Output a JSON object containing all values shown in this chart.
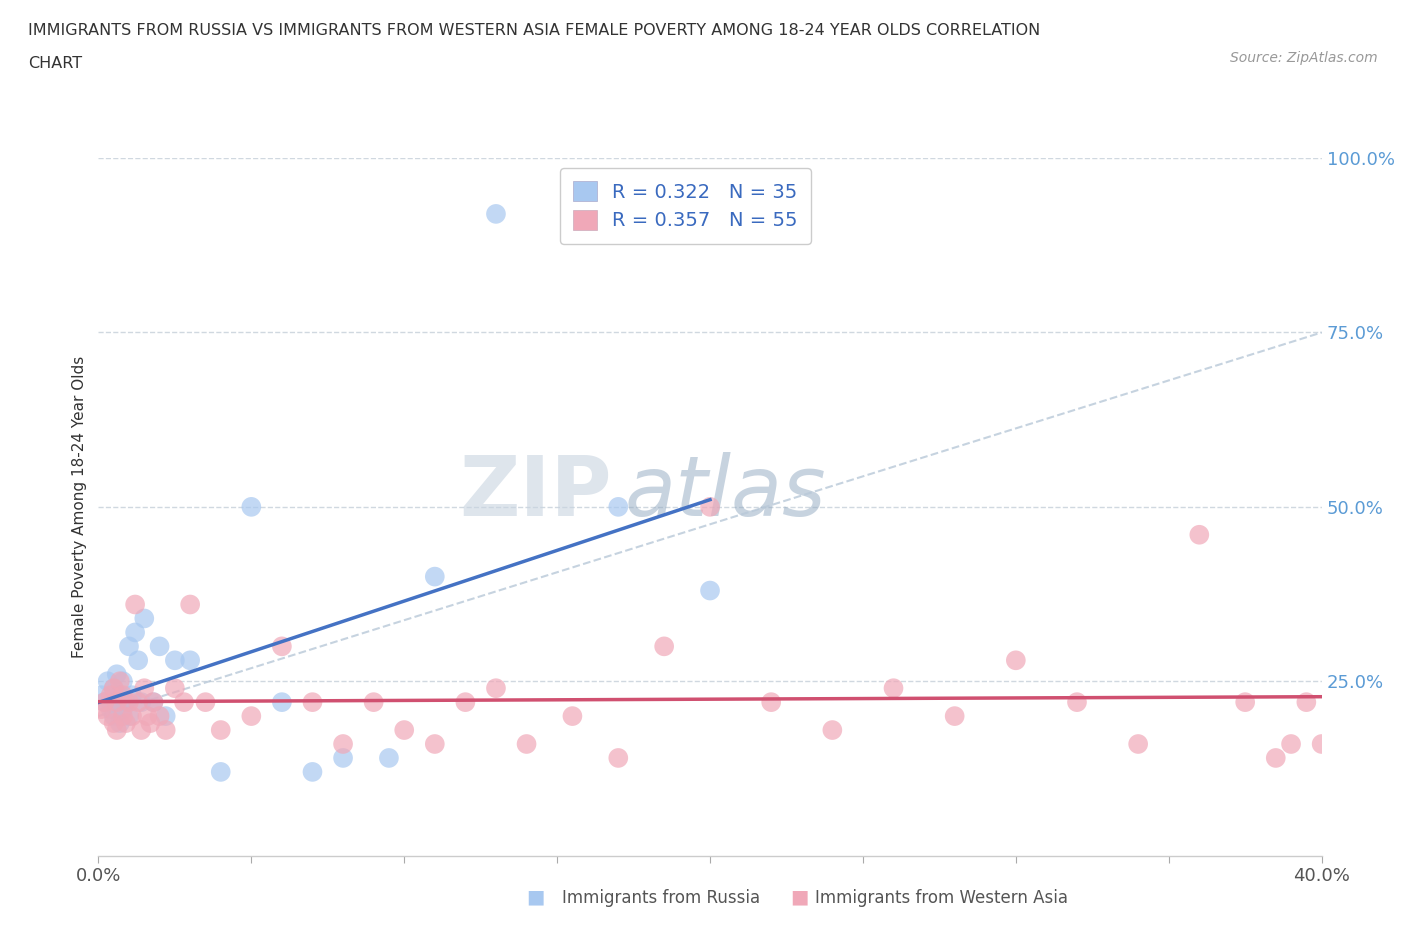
{
  "title_line1": "IMMIGRANTS FROM RUSSIA VS IMMIGRANTS FROM WESTERN ASIA FEMALE POVERTY AMONG 18-24 YEAR OLDS CORRELATION",
  "title_line2": "CHART",
  "source": "Source: ZipAtlas.com",
  "ylabel": "Female Poverty Among 18-24 Year Olds",
  "xlim": [
    0.0,
    0.4
  ],
  "ylim": [
    0.0,
    1.0
  ],
  "russia_R": 0.322,
  "russia_N": 35,
  "western_asia_R": 0.357,
  "western_asia_N": 55,
  "russia_color": "#a8c8f0",
  "western_asia_color": "#f0a8b8",
  "russia_line_color": "#4472c4",
  "western_asia_line_color": "#d05070",
  "dashed_line_color": "#b8c8d8",
  "legend_russia_label": "Immigrants from Russia",
  "legend_western_asia_label": "Immigrants from Western Asia",
  "russia_x": [
    0.001,
    0.002,
    0.003,
    0.004,
    0.005,
    0.005,
    0.006,
    0.006,
    0.007,
    0.007,
    0.008,
    0.008,
    0.009,
    0.01,
    0.01,
    0.011,
    0.012,
    0.013,
    0.014,
    0.015,
    0.018,
    0.02,
    0.022,
    0.025,
    0.03,
    0.04,
    0.05,
    0.06,
    0.07,
    0.08,
    0.095,
    0.11,
    0.13,
    0.17,
    0.2
  ],
  "russia_y": [
    0.23,
    0.22,
    0.25,
    0.21,
    0.2,
    0.24,
    0.22,
    0.26,
    0.23,
    0.19,
    0.25,
    0.21,
    0.22,
    0.3,
    0.2,
    0.23,
    0.32,
    0.28,
    0.22,
    0.34,
    0.22,
    0.3,
    0.2,
    0.28,
    0.28,
    0.12,
    0.5,
    0.22,
    0.12,
    0.14,
    0.14,
    0.4,
    0.92,
    0.5,
    0.38
  ],
  "western_asia_x": [
    0.001,
    0.002,
    0.003,
    0.004,
    0.005,
    0.005,
    0.006,
    0.006,
    0.007,
    0.008,
    0.008,
    0.009,
    0.01,
    0.011,
    0.012,
    0.013,
    0.014,
    0.015,
    0.016,
    0.017,
    0.018,
    0.02,
    0.022,
    0.025,
    0.028,
    0.03,
    0.035,
    0.04,
    0.05,
    0.06,
    0.07,
    0.08,
    0.09,
    0.1,
    0.11,
    0.12,
    0.13,
    0.14,
    0.155,
    0.17,
    0.185,
    0.2,
    0.22,
    0.24,
    0.26,
    0.28,
    0.3,
    0.32,
    0.34,
    0.36,
    0.375,
    0.385,
    0.39,
    0.395,
    0.4
  ],
  "western_asia_y": [
    0.21,
    0.22,
    0.2,
    0.23,
    0.19,
    0.24,
    0.22,
    0.18,
    0.25,
    0.2,
    0.23,
    0.19,
    0.22,
    0.2,
    0.36,
    0.22,
    0.18,
    0.24,
    0.2,
    0.19,
    0.22,
    0.2,
    0.18,
    0.24,
    0.22,
    0.36,
    0.22,
    0.18,
    0.2,
    0.3,
    0.22,
    0.16,
    0.22,
    0.18,
    0.16,
    0.22,
    0.24,
    0.16,
    0.2,
    0.14,
    0.3,
    0.5,
    0.22,
    0.18,
    0.24,
    0.2,
    0.28,
    0.22,
    0.16,
    0.46,
    0.22,
    0.14,
    0.16,
    0.22,
    0.16
  ],
  "watermark_zip": "ZIP",
  "watermark_atlas": "atlas",
  "background_color": "#ffffff",
  "grid_color": "#e0e0e0",
  "ytick_color": "#5b9bd5"
}
